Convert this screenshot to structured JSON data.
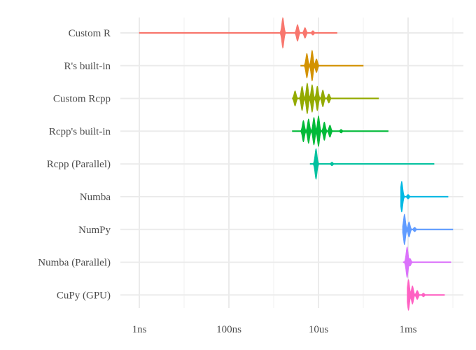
{
  "chart_data": {
    "type": "violin",
    "x_scale": "log10",
    "x_unit": "seconds",
    "xlim": [
      5e-10,
      0.012
    ],
    "grid": true,
    "legend": "none",
    "x_ticks": [
      {
        "value": 1e-09,
        "label": "1ns"
      },
      {
        "value": 1e-07,
        "label": "100ns"
      },
      {
        "value": 1e-05,
        "label": "10us"
      },
      {
        "value": 0.001,
        "label": "1ms"
      }
    ],
    "series": [
      {
        "name": "Custom R",
        "color": "#F8766D",
        "min": 1e-09,
        "max": 2.6e-05,
        "modes": [
          {
            "value": 1.6e-06,
            "density": 1.0
          },
          {
            "value": 3.4e-06,
            "density": 0.55
          },
          {
            "value": 5e-06,
            "density": 0.35
          },
          {
            "value": 7.5e-06,
            "density": 0.15
          }
        ]
      },
      {
        "name": "R's built-in",
        "color": "#D39200",
        "min": 4e-06,
        "max": 0.0001,
        "modes": [
          {
            "value": 5.5e-06,
            "density": 0.8
          },
          {
            "value": 7.2e-06,
            "density": 1.0
          },
          {
            "value": 9e-06,
            "density": 0.45
          }
        ]
      },
      {
        "name": "Custom Rcpp",
        "color": "#93AA00",
        "min": 2.6e-06,
        "max": 0.00022,
        "modes": [
          {
            "value": 3e-06,
            "density": 0.5
          },
          {
            "value": 4.3e-06,
            "density": 0.8
          },
          {
            "value": 5.6e-06,
            "density": 1.0
          },
          {
            "value": 7.2e-06,
            "density": 0.9
          },
          {
            "value": 9.4e-06,
            "density": 0.8
          },
          {
            "value": 1.25e-05,
            "density": 0.55
          },
          {
            "value": 1.7e-05,
            "density": 0.3
          }
        ]
      },
      {
        "name": "Rcpp's built-in",
        "color": "#00BA38",
        "min": 2.6e-06,
        "max": 0.00036,
        "modes": [
          {
            "value": 4.6e-06,
            "density": 0.7
          },
          {
            "value": 6e-06,
            "density": 0.8
          },
          {
            "value": 7.9e-06,
            "density": 0.9
          },
          {
            "value": 1e-05,
            "density": 1.0
          },
          {
            "value": 1.35e-05,
            "density": 0.6
          },
          {
            "value": 1.8e-05,
            "density": 0.4
          },
          {
            "value": 3.2e-05,
            "density": 0.12
          }
        ]
      },
      {
        "name": "Rcpp (Parallel)",
        "color": "#00C19F",
        "min": 6.5e-06,
        "max": 0.0038,
        "modes": [
          {
            "value": 8.8e-06,
            "density": 1.0
          },
          {
            "value": 2e-05,
            "density": 0.12
          }
        ]
      },
      {
        "name": "Numba",
        "color": "#00B9E3",
        "min": 0.00068,
        "max": 0.0078,
        "modes": [
          {
            "value": 0.00072,
            "density": 1.0
          },
          {
            "value": 0.001,
            "density": 0.15
          }
        ]
      },
      {
        "name": "NumPy",
        "color": "#619CFF",
        "min": 0.00075,
        "max": 0.01,
        "modes": [
          {
            "value": 0.00083,
            "density": 1.0
          },
          {
            "value": 0.00105,
            "density": 0.5
          },
          {
            "value": 0.0014,
            "density": 0.15
          }
        ]
      },
      {
        "name": "Numba (Parallel)",
        "color": "#DB72FB",
        "min": 0.00078,
        "max": 0.009,
        "modes": [
          {
            "value": 0.00095,
            "density": 1.0
          },
          {
            "value": 0.0011,
            "density": 0.25
          }
        ]
      },
      {
        "name": "CuPy (GPU)",
        "color": "#FF61C3",
        "min": 0.00095,
        "max": 0.0065,
        "modes": [
          {
            "value": 0.00102,
            "density": 1.0
          },
          {
            "value": 0.00125,
            "density": 0.6
          },
          {
            "value": 0.0016,
            "density": 0.3
          },
          {
            "value": 0.0022,
            "density": 0.12
          }
        ]
      }
    ]
  }
}
